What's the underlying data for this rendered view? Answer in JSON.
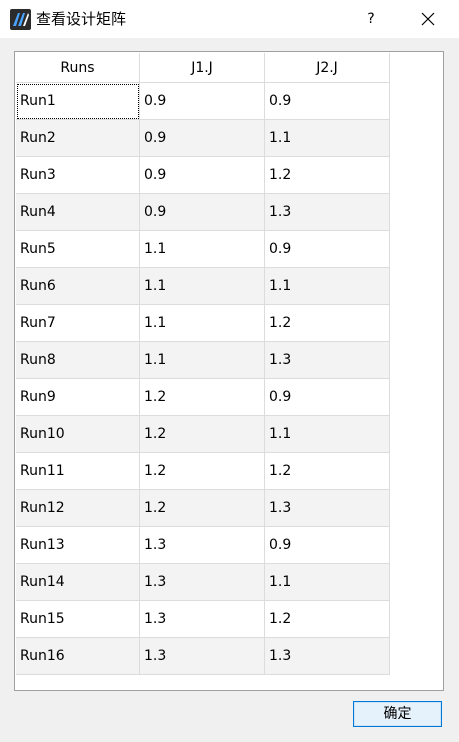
{
  "window": {
    "title": "查看设计矩阵",
    "help_label": "?",
    "ok_label": "确定"
  },
  "table": {
    "headers": [
      "Runs",
      "J1.J",
      "J2.J"
    ],
    "rows": [
      [
        "Run1",
        "0.9",
        "0.9"
      ],
      [
        "Run2",
        "0.9",
        "1.1"
      ],
      [
        "Run3",
        "0.9",
        "1.2"
      ],
      [
        "Run4",
        "0.9",
        "1.3"
      ],
      [
        "Run5",
        "1.1",
        "0.9"
      ],
      [
        "Run6",
        "1.1",
        "1.1"
      ],
      [
        "Run7",
        "1.1",
        "1.2"
      ],
      [
        "Run8",
        "1.1",
        "1.3"
      ],
      [
        "Run9",
        "1.2",
        "0.9"
      ],
      [
        "Run10",
        "1.2",
        "1.1"
      ],
      [
        "Run11",
        "1.2",
        "1.2"
      ],
      [
        "Run12",
        "1.2",
        "1.3"
      ],
      [
        "Run13",
        "1.3",
        "0.9"
      ],
      [
        "Run14",
        "1.3",
        "1.1"
      ],
      [
        "Run15",
        "1.3",
        "1.2"
      ],
      [
        "Run16",
        "1.3",
        "1.3"
      ]
    ]
  },
  "colors": {
    "accent": "#0078d7",
    "alt_row": "#f3f3f3"
  },
  "icons": {
    "app": "app-logo-icon",
    "close": "close-icon"
  }
}
